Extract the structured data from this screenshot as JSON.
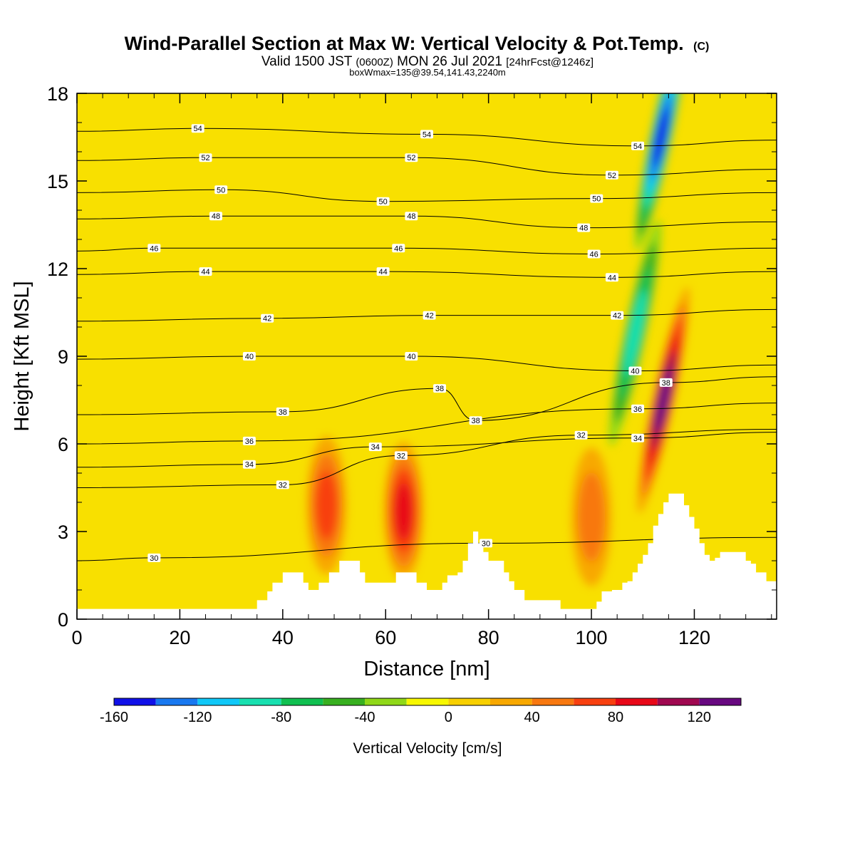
{
  "chart_data": {
    "type": "heatmap",
    "title": "Wind-Parallel Section at Max W: Vertical Velocity & Pot.Temp.",
    "title_mark": "(C)",
    "subtitle": {
      "lead": "Valid 1500 JST",
      "utc": "(0600Z)",
      "date": "MON 26 Jul 2021",
      "forecast": "[24hrFcst@1246z]"
    },
    "info_line": "boxWmax=135@39.54,141.43,2240m",
    "xlabel": "Distance [nm]",
    "ylabel": "Height [Kft MSL]",
    "xlim": [
      0,
      136
    ],
    "ylim": [
      0,
      18
    ],
    "xticks": [
      "0",
      "20",
      "40",
      "60",
      "80",
      "100",
      "120"
    ],
    "yticks": [
      "0",
      "3",
      "6",
      "9",
      "12",
      "15",
      "18"
    ],
    "colorbar": {
      "label": "Vertical Velocity [cm/s]",
      "ticks": [
        "-160",
        "-120",
        "-80",
        "-40",
        "0",
        "40",
        "80",
        "120"
      ],
      "bounds": [
        -160,
        140
      ],
      "colors": [
        "#1010e8",
        "#1878f0",
        "#10c8f8",
        "#18e0b0",
        "#10c050",
        "#38b020",
        "#90d818",
        "#f8f800",
        "#f8d000",
        "#f8a800",
        "#f87810",
        "#f84010",
        "#e80818",
        "#a00850",
        "#680880"
      ]
    },
    "updrafts": [
      {
        "x": 48.5,
        "y": 3.9,
        "w": 70
      },
      {
        "x": 63.5,
        "y": 3.7,
        "w": 80
      },
      {
        "x": 100,
        "y": 3.5,
        "w": 55
      },
      {
        "x": 114,
        "y": 7.5,
        "w": 135
      }
    ],
    "downdrafts": [
      {
        "x": 113.5,
        "y": 16.5,
        "w": -140
      },
      {
        "x": 108.5,
        "y": 9.8,
        "w": -80
      }
    ],
    "theta_contours": [
      {
        "label": "30",
        "at": [
          [
            15,
            2.1
          ],
          [
            79.5,
            2.6
          ]
        ]
      },
      {
        "label": "32",
        "at": [
          [
            40,
            4.6
          ],
          [
            63,
            5.6
          ],
          [
            98,
            6.3
          ]
        ]
      },
      {
        "label": "34",
        "at": [
          [
            33.5,
            5.3
          ],
          [
            58,
            5.9
          ],
          [
            109,
            6.2
          ]
        ]
      },
      {
        "label": "36",
        "at": [
          [
            33.5,
            6.1
          ],
          [
            109,
            7.2
          ]
        ]
      },
      {
        "label": "38",
        "at": [
          [
            40,
            7.1
          ],
          [
            70.5,
            7.9
          ],
          [
            77.5,
            6.8
          ],
          [
            114.5,
            8.1
          ]
        ]
      },
      {
        "label": "40",
        "at": [
          [
            33.5,
            9.0
          ],
          [
            65,
            9.0
          ],
          [
            108.5,
            8.5
          ]
        ]
      },
      {
        "label": "42",
        "at": [
          [
            37,
            10.3
          ],
          [
            68.5,
            10.4
          ],
          [
            105,
            10.4
          ]
        ]
      },
      {
        "label": "44",
        "at": [
          [
            25,
            11.9
          ],
          [
            59.5,
            11.9
          ],
          [
            104,
            11.7
          ]
        ]
      },
      {
        "label": "46",
        "at": [
          [
            15,
            12.7
          ],
          [
            62.5,
            12.7
          ],
          [
            100.5,
            12.5
          ]
        ]
      },
      {
        "label": "48",
        "at": [
          [
            27,
            13.8
          ],
          [
            65,
            13.8
          ],
          [
            98.5,
            13.4
          ]
        ]
      },
      {
        "label": "50",
        "at": [
          [
            28,
            14.7
          ],
          [
            59.5,
            14.3
          ],
          [
            101,
            14.4
          ]
        ]
      },
      {
        "label": "52",
        "at": [
          [
            25,
            15.8
          ],
          [
            65,
            15.8
          ],
          [
            104,
            15.2
          ]
        ]
      },
      {
        "label": "54",
        "at": [
          [
            23.5,
            16.8
          ],
          [
            68,
            16.6
          ],
          [
            109,
            16.2
          ]
        ]
      }
    ],
    "terrain": [
      [
        0,
        0.35
      ],
      [
        4,
        0.35
      ],
      [
        8,
        0.35
      ],
      [
        12,
        0.35
      ],
      [
        16,
        0.35
      ],
      [
        20,
        0.35
      ],
      [
        24,
        0.35
      ],
      [
        28,
        0.35
      ],
      [
        32,
        0.35
      ],
      [
        34,
        0.35
      ],
      [
        35,
        0.65
      ],
      [
        37,
        0.95
      ],
      [
        38,
        1.25
      ],
      [
        40,
        1.6
      ],
      [
        43,
        1.6
      ],
      [
        44,
        1.25
      ],
      [
        45,
        1.0
      ],
      [
        46,
        1.0
      ],
      [
        47,
        1.25
      ],
      [
        49,
        1.6
      ],
      [
        51,
        2.0
      ],
      [
        54,
        2.0
      ],
      [
        55,
        1.6
      ],
      [
        56,
        1.25
      ],
      [
        58,
        1.25
      ],
      [
        59,
        1.25
      ],
      [
        60,
        1.25
      ],
      [
        61,
        1.25
      ],
      [
        62,
        1.6
      ],
      [
        65,
        1.6
      ],
      [
        66,
        1.25
      ],
      [
        68,
        1.0
      ],
      [
        70,
        1.0
      ],
      [
        71,
        1.25
      ],
      [
        72,
        1.5
      ],
      [
        74,
        1.6
      ],
      [
        75,
        2.0
      ],
      [
        76,
        2.6
      ],
      [
        77,
        3.0
      ],
      [
        78,
        2.6
      ],
      [
        79,
        2.3
      ],
      [
        80,
        2.0
      ],
      [
        82,
        2.0
      ],
      [
        83,
        1.6
      ],
      [
        84,
        1.3
      ],
      [
        85,
        1.0
      ],
      [
        87,
        0.65
      ],
      [
        89,
        0.65
      ],
      [
        92,
        0.65
      ],
      [
        94,
        0.35
      ],
      [
        96,
        0.35
      ],
      [
        98,
        0.35
      ],
      [
        100,
        0.35
      ],
      [
        101,
        0.6
      ],
      [
        102,
        0.95
      ],
      [
        104,
        1.0
      ],
      [
        106,
        1.25
      ],
      [
        107,
        1.3
      ],
      [
        108,
        1.6
      ],
      [
        109,
        1.9
      ],
      [
        110,
        2.2
      ],
      [
        111,
        2.6
      ],
      [
        112,
        3.2
      ],
      [
        113,
        3.6
      ],
      [
        114,
        4.0
      ],
      [
        115,
        4.3
      ],
      [
        117,
        4.3
      ],
      [
        118,
        3.9
      ],
      [
        119,
        3.5
      ],
      [
        120,
        3.1
      ],
      [
        121,
        2.6
      ],
      [
        122,
        2.2
      ],
      [
        123,
        2.0
      ],
      [
        124,
        2.1
      ],
      [
        125,
        2.3
      ],
      [
        126,
        2.3
      ],
      [
        128,
        2.3
      ],
      [
        130,
        2.0
      ],
      [
        131,
        1.9
      ],
      [
        132,
        1.6
      ],
      [
        134,
        1.3
      ],
      [
        136,
        1.3
      ]
    ]
  }
}
